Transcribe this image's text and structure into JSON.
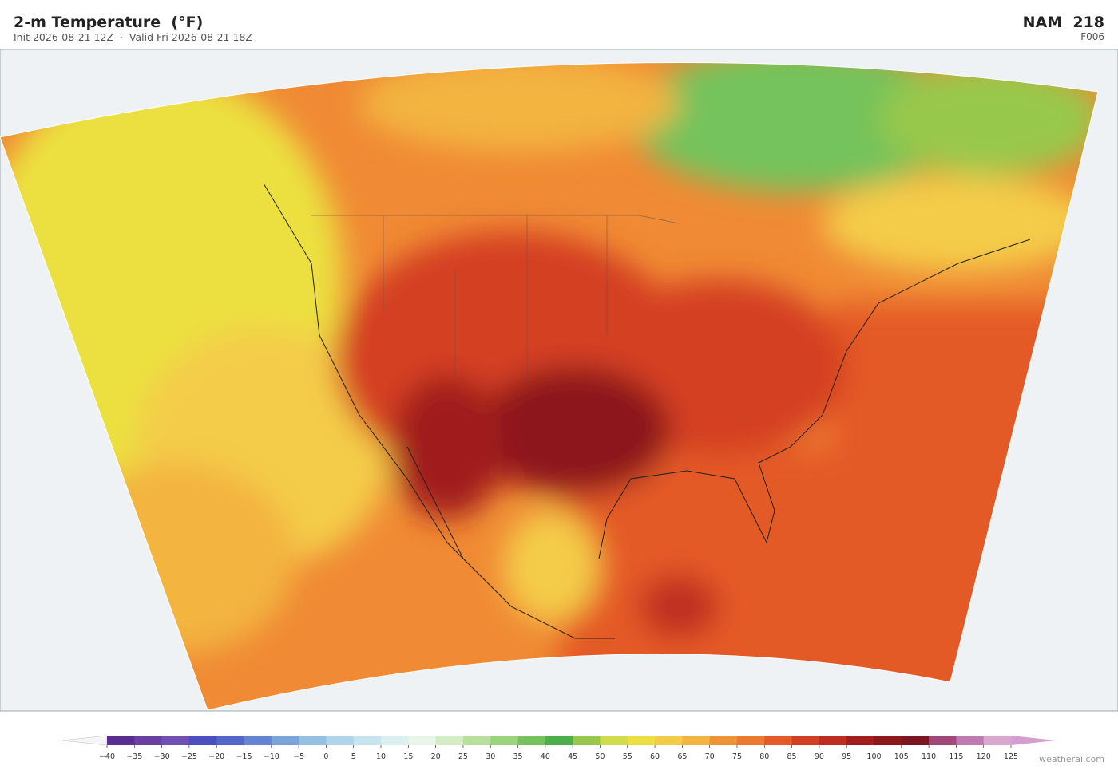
{
  "header": {
    "title": "2-m Temperature  (°F)",
    "subtitle": "Init 2026-08-21 12Z  ·  Valid Fri 2026-08-21 18Z",
    "model": "NAM  218",
    "forecast_hour": "F006"
  },
  "colorbar": {
    "ticks": [
      {
        "value": -40,
        "label": "−40"
      },
      {
        "value": -35,
        "label": "−35"
      },
      {
        "value": -30,
        "label": "−30"
      },
      {
        "value": -25,
        "label": "−25"
      },
      {
        "value": -20,
        "label": "−20"
      },
      {
        "value": -15,
        "label": "−15"
      },
      {
        "value": -10,
        "label": "−10"
      },
      {
        "value": -5,
        "label": "−5"
      },
      0,
      5,
      10,
      15,
      20,
      25,
      30,
      35,
      40,
      45,
      50,
      55,
      60,
      65,
      70,
      75,
      80,
      85,
      90,
      95,
      100,
      105,
      110,
      115,
      120,
      125
    ],
    "colors": [
      "#5a2d91",
      "#6b3fa0",
      "#7050b5",
      "#4b4fc0",
      "#5466c8",
      "#6484d2",
      "#7ca3da",
      "#94c0e2",
      "#b0d4ea",
      "#c8e4f0",
      "#dcefef",
      "#e8f5e8",
      "#d4edc4",
      "#b8e09c",
      "#9cd47c",
      "#74c35c",
      "#4caf4a",
      "#98c84c",
      "#cfdc4c",
      "#ece040",
      "#f4cc48",
      "#f3b441",
      "#ef9436",
      "#ec7a30",
      "#e45a28",
      "#d43f23",
      "#bf2d20",
      "#a01f1e",
      "#8c181c",
      "#7a1720",
      "#a04878",
      "#c07ab0",
      "#d8a8d0"
    ],
    "under_color": "#f6f6f8",
    "over_color": "#d49fd0"
  },
  "footer": {
    "credit": "weatherai.com"
  }
}
